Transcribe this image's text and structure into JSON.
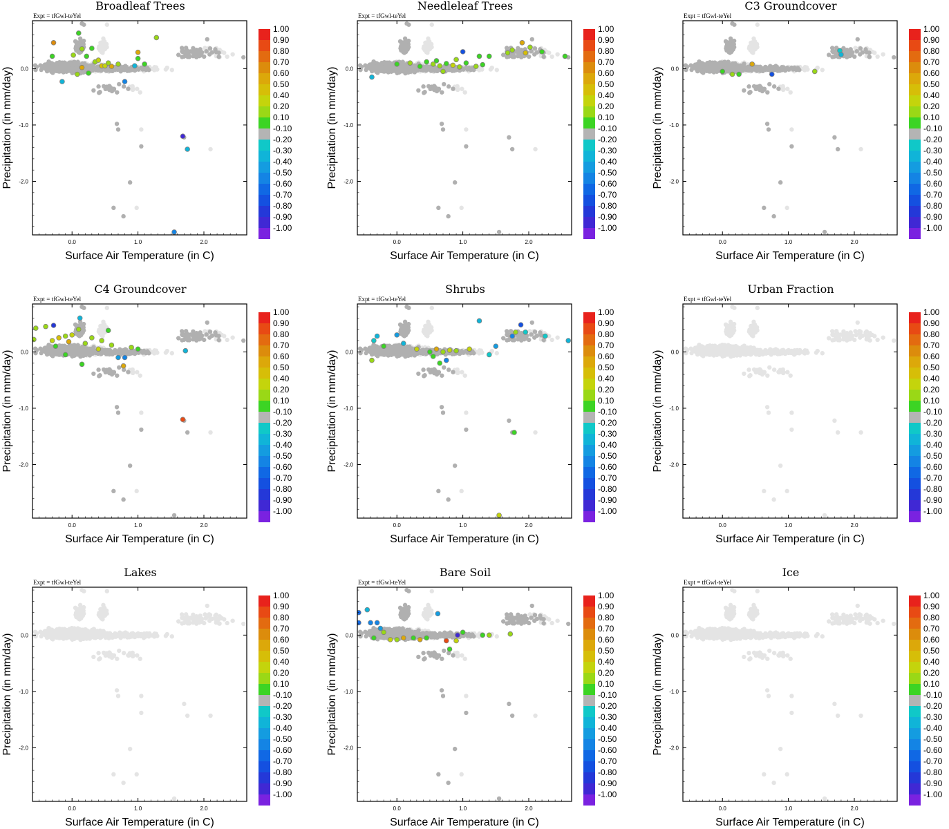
{
  "figure": {
    "expt_label": "Expt = tfGwl-teYel",
    "xlabel": "Surface Air Temperature (in C)",
    "ylabel": "Precipitation (in mm/day)",
    "x_ticks": [
      "0.0",
      "1.0",
      "2.0"
    ],
    "y_ticks": [
      "0.0",
      "-1.0",
      "-2.0"
    ],
    "xlim": [
      -0.6,
      2.65
    ],
    "ylim": [
      -2.95,
      0.85
    ],
    "colorbar_labels": [
      "1.00",
      "0.90",
      "0.80",
      "0.70",
      "0.60",
      "0.50",
      "0.40",
      "0.20",
      "0.10",
      "-0.10",
      "-0.20",
      "-0.30",
      "-0.40",
      "-0.50",
      "-0.60",
      "-0.70",
      "-0.80",
      "-0.90",
      "-1.00"
    ],
    "colorbar_colors": [
      "#e8221c",
      "#e84a14",
      "#e36b10",
      "#dc8c0c",
      "#dca80a",
      "#d6be08",
      "#c4d40c",
      "#9ad816",
      "#3cd424",
      "#b4b4b4",
      "#10c8c8",
      "#10b4d8",
      "#149ce0",
      "#1484e4",
      "#1068e4",
      "#1450e0",
      "#2438d8",
      "#4028d4",
      "#7a22e0"
    ],
    "neutral_color": "#b0b0b0",
    "background_point_color": "#e4e4e4"
  },
  "chart_data": [
    {
      "type": "scatter",
      "title": "Broadleaf Trees",
      "highlighted_points": [
        {
          "x": -0.28,
          "y": 0.46,
          "v": 0.7
        },
        {
          "x": -0.3,
          "y": 0.22,
          "v": 0.1
        },
        {
          "x": 0.1,
          "y": 0.63,
          "v": 0.1
        },
        {
          "x": 0.15,
          "y": 0.35,
          "v": 0.2
        },
        {
          "x": 0.3,
          "y": 0.36,
          "v": 0.1
        },
        {
          "x": 0.02,
          "y": 0.24,
          "v": 0.2
        },
        {
          "x": 0.22,
          "y": 0.22,
          "v": 0.1
        },
        {
          "x": 0.35,
          "y": 0.12,
          "v": 0.2
        },
        {
          "x": 0.45,
          "y": 0.05,
          "v": 0.5
        },
        {
          "x": 0.5,
          "y": 0.05,
          "v": 0.4
        },
        {
          "x": 0.6,
          "y": 0.04,
          "v": 0.6
        },
        {
          "x": 0.7,
          "y": 0.08,
          "v": 0.2
        },
        {
          "x": 0.15,
          "y": 0.02,
          "v": 0.6
        },
        {
          "x": 0.08,
          "y": -0.1,
          "v": 0.2
        },
        {
          "x": 0.25,
          "y": -0.08,
          "v": 0.1
        },
        {
          "x": 1.0,
          "y": 0.29,
          "v": 0.6
        },
        {
          "x": 1.0,
          "y": 0.18,
          "v": 0.1
        },
        {
          "x": 1.1,
          "y": 0.08,
          "v": 0.1
        },
        {
          "x": 1.28,
          "y": 0.55,
          "v": 0.2
        },
        {
          "x": 0.4,
          "y": 0.15,
          "v": 0.4
        },
        {
          "x": 0.55,
          "y": 0.1,
          "v": 0.3
        },
        {
          "x": -0.15,
          "y": -0.23,
          "v": -0.3
        },
        {
          "x": 0.8,
          "y": -0.23,
          "v": -0.5
        },
        {
          "x": 0.95,
          "y": 0.05,
          "v": -0.3
        },
        {
          "x": 1.68,
          "y": -1.2,
          "v": -0.9
        },
        {
          "x": 1.75,
          "y": -1.43,
          "v": -0.3
        },
        {
          "x": 1.55,
          "y": -2.9,
          "v": -0.5
        }
      ]
    },
    {
      "type": "scatter",
      "title": "Needleleaf Trees",
      "highlighted_points": [
        {
          "x": -0.38,
          "y": -0.15,
          "v": -0.3
        },
        {
          "x": 0.0,
          "y": 0.08,
          "v": 0.1
        },
        {
          "x": 0.2,
          "y": 0.1,
          "v": 0.2
        },
        {
          "x": 0.35,
          "y": 0.04,
          "v": 0.1
        },
        {
          "x": 0.55,
          "y": 0.08,
          "v": 0.2
        },
        {
          "x": 0.65,
          "y": 0.05,
          "v": 0.3
        },
        {
          "x": 0.75,
          "y": 0.09,
          "v": 0.1
        },
        {
          "x": 0.85,
          "y": 0.06,
          "v": 0.4
        },
        {
          "x": 0.95,
          "y": 0.03,
          "v": 0.2
        },
        {
          "x": 1.05,
          "y": 0.1,
          "v": 0.1
        },
        {
          "x": 1.2,
          "y": 0.04,
          "v": 0.2
        },
        {
          "x": 1.3,
          "y": 0.07,
          "v": 0.1
        },
        {
          "x": 0.45,
          "y": 0.12,
          "v": 0.1
        },
        {
          "x": 0.9,
          "y": 0.16,
          "v": 0.2
        },
        {
          "x": 0.7,
          "y": -0.05,
          "v": 0.2
        },
        {
          "x": 1.0,
          "y": 0.3,
          "v": -0.7
        },
        {
          "x": 1.25,
          "y": 0.22,
          "v": 0.1
        },
        {
          "x": 1.4,
          "y": 0.22,
          "v": 0.1
        },
        {
          "x": 1.68,
          "y": 0.28,
          "v": 0.2
        },
        {
          "x": 1.75,
          "y": 0.33,
          "v": 0.3
        },
        {
          "x": 1.9,
          "y": 0.46,
          "v": 0.6
        },
        {
          "x": 1.95,
          "y": 0.28,
          "v": 0.5
        },
        {
          "x": 2.02,
          "y": 0.38,
          "v": 0.2
        },
        {
          "x": 2.2,
          "y": 0.3,
          "v": 0.1
        },
        {
          "x": 2.55,
          "y": 0.22,
          "v": 0.1
        },
        {
          "x": 0.6,
          "y": 0.14,
          "v": 0.1
        }
      ]
    },
    {
      "type": "scatter",
      "title": "C3 Groundcover",
      "highlighted_points": [
        {
          "x": 0.0,
          "y": -0.05,
          "v": 0.1
        },
        {
          "x": 0.15,
          "y": -0.1,
          "v": 0.2
        },
        {
          "x": 0.25,
          "y": -0.1,
          "v": 0.1
        },
        {
          "x": 0.45,
          "y": 0.08,
          "v": 0.6
        },
        {
          "x": 0.75,
          "y": -0.1,
          "v": -0.7
        },
        {
          "x": 1.4,
          "y": -0.05,
          "v": 0.2
        },
        {
          "x": 1.78,
          "y": 0.32,
          "v": -0.2
        },
        {
          "x": 1.8,
          "y": 0.25,
          "v": -0.3
        }
      ]
    },
    {
      "type": "scatter",
      "title": "C4 Groundcover",
      "highlighted_points": [
        {
          "x": -0.55,
          "y": 0.42,
          "v": 0.2
        },
        {
          "x": -0.58,
          "y": 0.22,
          "v": 0.3
        },
        {
          "x": -0.4,
          "y": 0.45,
          "v": 0.3
        },
        {
          "x": -0.28,
          "y": 0.47,
          "v": -0.8
        },
        {
          "x": -0.3,
          "y": 0.2,
          "v": 0.4
        },
        {
          "x": -0.2,
          "y": 0.25,
          "v": 0.5
        },
        {
          "x": -0.1,
          "y": 0.28,
          "v": 0.2
        },
        {
          "x": 0.0,
          "y": 0.3,
          "v": 0.4
        },
        {
          "x": 0.1,
          "y": 0.4,
          "v": 0.2
        },
        {
          "x": -0.25,
          "y": 0.1,
          "v": 0.1
        },
        {
          "x": -0.1,
          "y": -0.05,
          "v": 0.1
        },
        {
          "x": 0.2,
          "y": 0.15,
          "v": 0.2
        },
        {
          "x": 0.3,
          "y": 0.25,
          "v": 0.3
        },
        {
          "x": 0.45,
          "y": 0.2,
          "v": 0.2
        },
        {
          "x": 0.55,
          "y": 0.38,
          "v": 0.1
        },
        {
          "x": 0.4,
          "y": 0.05,
          "v": 0.4
        },
        {
          "x": 0.6,
          "y": 0.12,
          "v": 0.3
        },
        {
          "x": 0.7,
          "y": -0.1,
          "v": -0.4
        },
        {
          "x": 0.78,
          "y": -0.25,
          "v": 0.6
        },
        {
          "x": 0.8,
          "y": -0.1,
          "v": -0.5
        },
        {
          "x": 0.9,
          "y": 0.08,
          "v": 0.2
        },
        {
          "x": 1.0,
          "y": 0.05,
          "v": 0.1
        },
        {
          "x": 0.15,
          "y": -0.22,
          "v": 0.1
        },
        {
          "x": 0.12,
          "y": 0.6,
          "v": -0.3
        },
        {
          "x": -0.05,
          "y": 0.18,
          "v": 0.6
        },
        {
          "x": 1.72,
          "y": 0.02,
          "v": -0.3
        },
        {
          "x": 1.68,
          "y": -1.2,
          "v": 0.9
        }
      ]
    },
    {
      "type": "scatter",
      "title": "Shrubs",
      "highlighted_points": [
        {
          "x": -0.38,
          "y": -0.15,
          "v": 0.3
        },
        {
          "x": -0.35,
          "y": 0.2,
          "v": -0.2
        },
        {
          "x": -0.3,
          "y": 0.28,
          "v": -0.3
        },
        {
          "x": 0.0,
          "y": 0.3,
          "v": -0.4
        },
        {
          "x": -0.2,
          "y": 0.1,
          "v": 0.1
        },
        {
          "x": 0.1,
          "y": 0.15,
          "v": -0.3
        },
        {
          "x": 0.3,
          "y": 0.05,
          "v": 0.4
        },
        {
          "x": 0.5,
          "y": 0.0,
          "v": 0.1
        },
        {
          "x": 0.6,
          "y": 0.05,
          "v": 0.6
        },
        {
          "x": 0.7,
          "y": 0.0,
          "v": 0.3
        },
        {
          "x": 0.8,
          "y": 0.03,
          "v": 0.4
        },
        {
          "x": 0.9,
          "y": 0.02,
          "v": 0.2
        },
        {
          "x": 0.55,
          "y": -0.08,
          "v": 0.1
        },
        {
          "x": 0.75,
          "y": -0.15,
          "v": -0.5
        },
        {
          "x": 0.65,
          "y": -0.2,
          "v": 0.1
        },
        {
          "x": 1.1,
          "y": 0.05,
          "v": 0.4
        },
        {
          "x": 1.25,
          "y": 0.55,
          "v": -0.3
        },
        {
          "x": 1.4,
          "y": -0.05,
          "v": -0.2
        },
        {
          "x": 1.5,
          "y": 0.1,
          "v": -0.4
        },
        {
          "x": 1.75,
          "y": 0.28,
          "v": -0.5
        },
        {
          "x": 1.8,
          "y": 0.35,
          "v": 0.3
        },
        {
          "x": 1.88,
          "y": 0.48,
          "v": -0.7
        },
        {
          "x": 1.95,
          "y": 0.35,
          "v": -0.2
        },
        {
          "x": 2.25,
          "y": 0.28,
          "v": -0.2
        },
        {
          "x": 2.6,
          "y": 0.2,
          "v": -0.3
        },
        {
          "x": 1.78,
          "y": -1.43,
          "v": 0.1
        },
        {
          "x": 1.55,
          "y": -2.9,
          "v": 0.4
        }
      ]
    },
    {
      "type": "scatter",
      "title": "Urban Fraction",
      "highlighted_points": []
    },
    {
      "type": "scatter",
      "title": "Lakes",
      "highlighted_points": []
    },
    {
      "type": "scatter",
      "title": "Bare Soil",
      "highlighted_points": [
        {
          "x": -0.58,
          "y": 0.4,
          "v": -0.6
        },
        {
          "x": -0.58,
          "y": 0.22,
          "v": -0.6
        },
        {
          "x": -0.45,
          "y": 0.45,
          "v": -0.3
        },
        {
          "x": -0.4,
          "y": 0.22,
          "v": -0.5
        },
        {
          "x": -0.3,
          "y": 0.22,
          "v": -0.5
        },
        {
          "x": -0.25,
          "y": 0.12,
          "v": -0.4
        },
        {
          "x": -0.35,
          "y": -0.05,
          "v": 0.1
        },
        {
          "x": -0.2,
          "y": 0.05,
          "v": 0.2
        },
        {
          "x": -0.1,
          "y": -0.08,
          "v": 0.4
        },
        {
          "x": 0.0,
          "y": -0.08,
          "v": 0.2
        },
        {
          "x": 0.1,
          "y": -0.05,
          "v": 0.6
        },
        {
          "x": 0.25,
          "y": -0.05,
          "v": 0.1
        },
        {
          "x": 0.35,
          "y": -0.08,
          "v": 0.6
        },
        {
          "x": 0.45,
          "y": -0.05,
          "v": 0.1
        },
        {
          "x": 0.62,
          "y": 0.38,
          "v": -0.4
        },
        {
          "x": 0.75,
          "y": -0.1,
          "v": 0.9
        },
        {
          "x": 0.8,
          "y": -0.25,
          "v": 0.1
        },
        {
          "x": 0.92,
          "y": 0.0,
          "v": -0.9
        },
        {
          "x": 0.9,
          "y": -0.1,
          "v": 0.4
        },
        {
          "x": 1.0,
          "y": 0.05,
          "v": 0.1
        },
        {
          "x": 1.3,
          "y": 0.0,
          "v": 0.1
        },
        {
          "x": 1.4,
          "y": 0.0,
          "v": 0.2
        },
        {
          "x": 1.72,
          "y": 0.02,
          "v": 0.2
        }
      ]
    },
    {
      "type": "scatter",
      "title": "Ice",
      "highlighted_points": []
    }
  ]
}
